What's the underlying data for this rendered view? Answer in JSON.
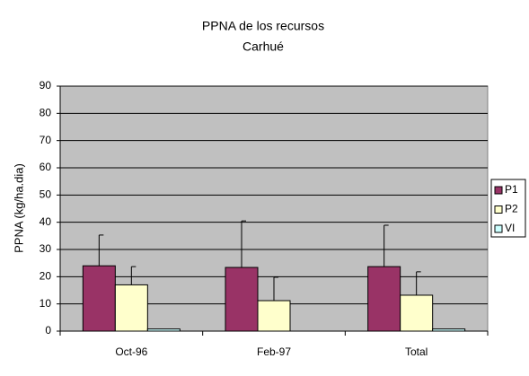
{
  "chart_data": {
    "type": "bar",
    "title": "PPNA de los recursos",
    "subtitle": "Carhué",
    "y_label": "PPNA (kg/ha.dia)",
    "categories": [
      "Oct-96",
      "Feb-97",
      "Total"
    ],
    "series": [
      {
        "name": "P1",
        "color": "#993366",
        "values": [
          24,
          23.4,
          23.7
        ],
        "errors": [
          11.3,
          17.1,
          15.2
        ]
      },
      {
        "name": "P2",
        "color": "#ffffcc",
        "values": [
          17,
          11.2,
          13.2
        ],
        "errors": [
          6.7,
          8.6,
          8.6
        ]
      },
      {
        "name": "VI",
        "color": "#ccffff",
        "values": [
          0.8,
          0,
          0.8
        ],
        "errors": [
          0,
          0,
          0
        ]
      }
    ],
    "ylim": [
      0,
      90
    ],
    "yticks": [
      0,
      10,
      20,
      30,
      40,
      50,
      60,
      70,
      80,
      90
    ],
    "grid": true
  }
}
